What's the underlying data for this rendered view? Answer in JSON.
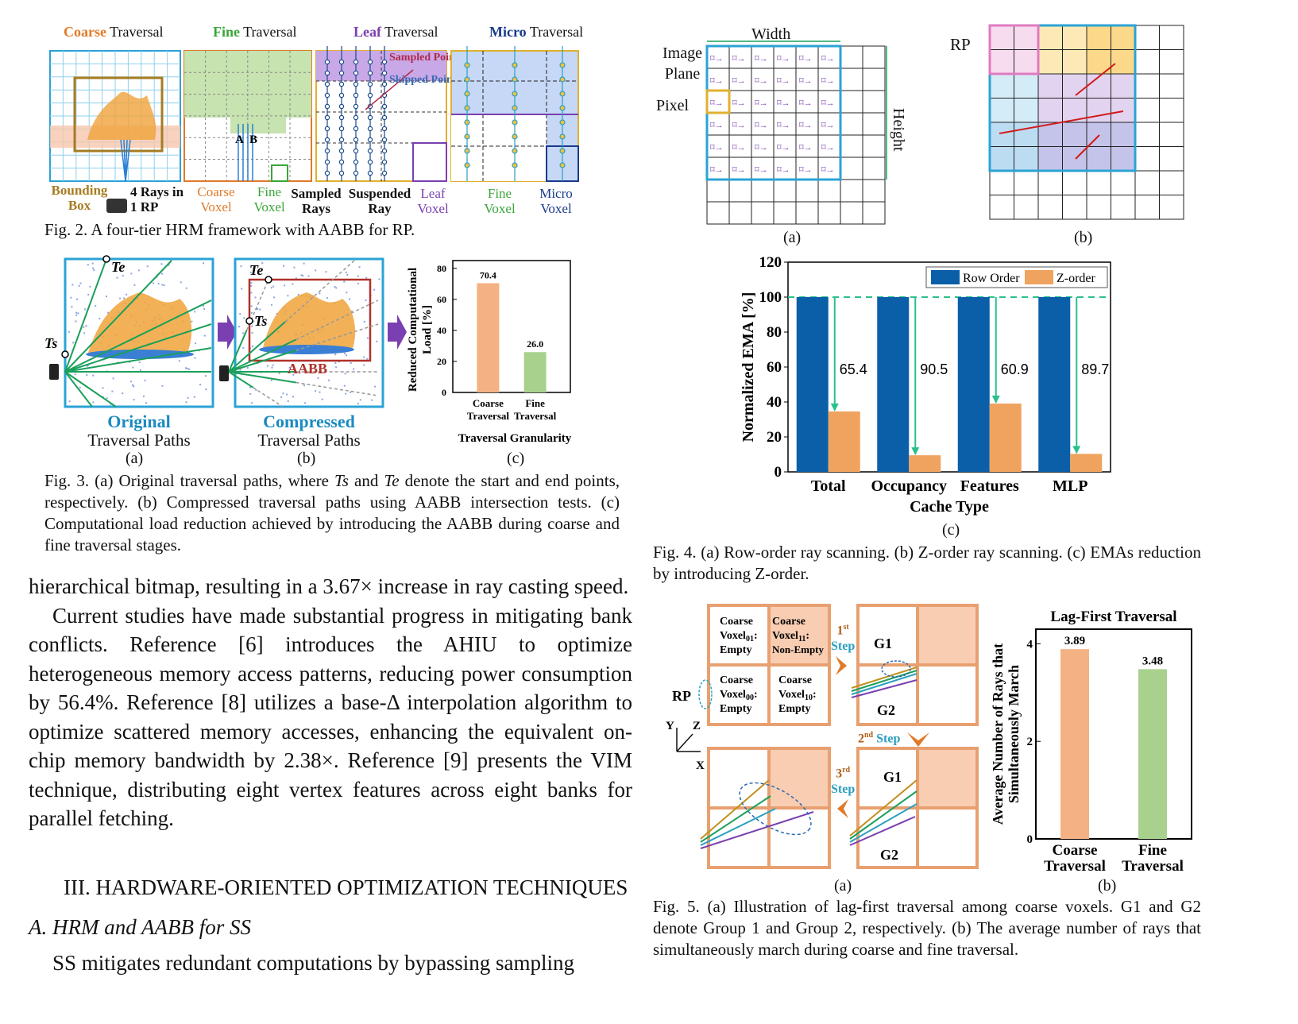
{
  "colors": {
    "coarse": "#e07b2a",
    "fine": "#3aa63a",
    "leaf": "#7a3fb0",
    "micro": "#1a3a8a",
    "row_order": "#0a5fa8",
    "z_order": "#f0a35e",
    "bar_coarse": "#f4b183",
    "bar_fine": "#a9d18e",
    "frame_blue": "#2ba3d6"
  },
  "fig2": {
    "tiers": [
      {
        "key": "Coarse",
        "rest": " Traversal"
      },
      {
        "key": "Fine",
        "rest": " Traversal"
      },
      {
        "key": "Leaf",
        "rest": " Traversal"
      },
      {
        "key": "Micro",
        "rest": " Traversal"
      }
    ],
    "labels": {
      "bounding_box": "Bounding Box",
      "rays_rp": "4 Rays in 1 RP",
      "coarse_voxel": "Coarse Voxel",
      "fine_voxel": "Fine Voxel",
      "sampled_rays": "Sampled Rays",
      "suspended_ray": "Suspended Ray",
      "leaf_voxel": "Leaf Voxel",
      "fine_voxel2": "Fine Voxel",
      "micro_voxel": "Micro Voxel",
      "sampled_point": "Sampled Point",
      "skipped_point": "Skipped Point",
      "a": "A",
      "b": "B"
    },
    "caption": "Fig. 2. A four-tier HRM framework with AABB for RP."
  },
  "fig3": {
    "te": "Te",
    "ts": "Ts",
    "aabb": "AABB",
    "panel_a_title": "Original",
    "panel_a_sub": "Traversal Paths",
    "panel_b_title": "Compressed",
    "panel_b_sub": "Traversal Paths",
    "sub_a": "(a)",
    "sub_b": "(b)",
    "sub_c": "(c)",
    "caption": "Fig. 3.  (a) Original traversal paths, where Ts and Te denote the start and end points, respectively. (b) Compressed traversal paths using AABB intersection tests. (c) Computational load reduction achieved by introducing the AABB during coarse and fine traversal stages.",
    "caption_parts": {
      "p1": "Fig. 3.  (a) Original traversal paths, where ",
      "ts": "Ts",
      "p2": " and ",
      "te": "Te",
      "p3": " denote the start and end points, respectively. (b) Compressed traversal paths using AABB intersection tests. (c) Computational load reduction achieved by introducing the AABB during coarse and fine traversal stages."
    }
  },
  "fig4": {
    "image_plane": "Image Plane",
    "pixel": "Pixel",
    "width": "Width",
    "height": "Height",
    "rp": "RP",
    "sub_a": "(a)",
    "sub_b": "(b)",
    "sub_c": "(c)",
    "caption": "Fig. 4. (a) Row-order ray scanning. (b) Z-order ray scanning. (c) EMAs reduction by introducing Z-order."
  },
  "fig5": {
    "cells": {
      "v01": "Coarse Voxel01: Empty",
      "v11": "Coarse Voxel11: Non-Empty",
      "v00": "Coarse Voxel00: Empty",
      "v10": "Coarse Voxel10: Empty"
    },
    "cell_lines": {
      "v01": [
        "Coarse",
        "Voxel",
        "01",
        ":",
        "Empty"
      ],
      "v11": [
        "Coarse",
        "Voxel",
        "11",
        ":",
        "Non-Empty"
      ],
      "v00": [
        "Coarse",
        "Voxel",
        "00",
        ":",
        "Empty"
      ],
      "v10": [
        "Coarse",
        "Voxel",
        "10",
        ":",
        "Empty"
      ]
    },
    "rp": "RP",
    "steps": [
      {
        "n": "1",
        "sup": "st",
        "word": "Step"
      },
      {
        "n": "2",
        "sup": "nd",
        "word": "Step"
      },
      {
        "n": "3",
        "sup": "rd",
        "word": "Step"
      }
    ],
    "g1": "G1",
    "g2": "G2",
    "axis_x": "X",
    "axis_y": "Y",
    "axis_z": "Z",
    "sub_a": "(a)",
    "sub_b": "(b)",
    "caption": "Fig. 5. (a) Illustration of lag-first traversal among coarse voxels. G1 and G2 denote Group 1 and Group 2, respectively. (b) The average number of rays that simultaneously march during coarse and fine traversal."
  },
  "body": {
    "para1": "hierarchical bitmap, resulting in a 3.67× increase in ray casting speed.",
    "para2": "Current studies have made substantial progress in mitigating bank conflicts. Reference [6] introduces the AHIU to optimize heterogeneous memory access patterns, reducing power consumption by 56.4%. Reference [8] utilizes a base-Δ interpolation algorithm to optimize scattered memory accesses, enhancing the equivalent on-chip memory bandwidth by 2.38×. Reference [9] presents the VIM technique, distributing eight vertex features across eight banks for parallel fetching.",
    "section_num": "III. H",
    "section_title": "III. HARDWARE-ORIENTED OPTIMIZATION TECHNIQUES",
    "subsection": "A. HRM and AABB for SS",
    "para3": "SS mitigates redundant computations by bypassing sampling"
  },
  "chart_data": [
    {
      "type": "bar",
      "id": "fig3c",
      "categories": [
        "Coarse Traversal",
        "Fine Traversal"
      ],
      "values": [
        70.4,
        26.0
      ],
      "value_labels": [
        "70.4",
        "26.0"
      ],
      "xlabel": "Traversal Granularity",
      "ylabel": "Reduced Computational Load [%]",
      "ylim": [
        0,
        85
      ],
      "yticks": [
        0,
        20,
        40,
        60,
        80
      ],
      "colors": [
        "#f4b183",
        "#a9d18e"
      ]
    },
    {
      "type": "bar",
      "id": "fig4c",
      "categories": [
        "Total",
        "Occupancy",
        "Features",
        "MLP"
      ],
      "xlabel": "Cache Type",
      "ylabel": "Normalized EMA [%]",
      "ylim": [
        0,
        120
      ],
      "yticks": [
        0,
        20,
        40,
        60,
        80,
        100,
        120
      ],
      "series": [
        {
          "name": "Row Order",
          "values": [
            100,
            100,
            100,
            100
          ],
          "color": "#0a5fa8"
        },
        {
          "name": "Z-order",
          "values": [
            34.6,
            9.5,
            39.1,
            10.3
          ],
          "color": "#f0a35e"
        }
      ],
      "reduction_labels": [
        "65.4",
        "90.5",
        "60.9",
        "89.7"
      ],
      "legend": "top-right",
      "reference_line": 100
    },
    {
      "type": "bar",
      "id": "fig5b",
      "title": "Lag-First Traversal",
      "categories": [
        "Coarse Traversal",
        "Fine Traversal"
      ],
      "values": [
        3.89,
        3.48
      ],
      "value_labels": [
        "3.89",
        "3.48"
      ],
      "ylabel": "Average Number of Rays that Simultaneously March",
      "ylim": [
        0,
        4.3
      ],
      "yticks": [
        0,
        2,
        4
      ],
      "colors": [
        "#f4b183",
        "#a9d18e"
      ]
    }
  ]
}
